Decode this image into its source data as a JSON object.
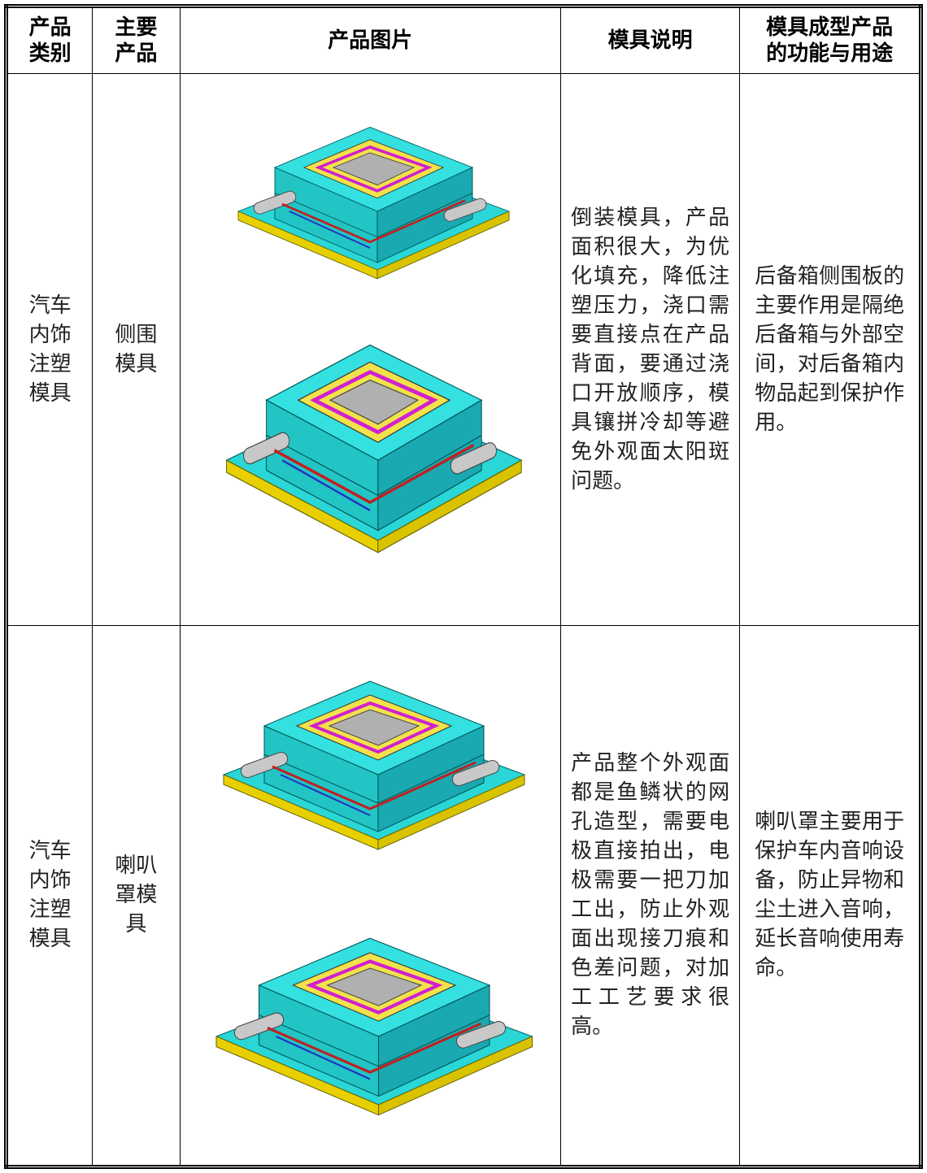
{
  "header": [
    "产品类别",
    "主要产品",
    "产品图片",
    "模具说明",
    "模具成型产品的功能与用途"
  ],
  "rows": [
    {
      "category": "汽车内饰注塑模具",
      "product": "侧围模具",
      "description": "倒装模具，产品面积很大，为优化填充，降低注塑压力，浇口需要直接点在产品背面，要通过浇口开放顺序，模具镶拼冷却等避免外观面太阳斑问题。",
      "function": "后备箱侧围板的主要作用是隔绝后备箱与外部空间，对后备箱内物品起到保护作用。"
    },
    {
      "category": "汽车内饰注塑模具",
      "product": "喇叭罩模具",
      "description": "产品整个外观面都是鱼鳞状的网孔造型，需要电极直接拍出，电极需要一把刀加工出，防止外观面出现接刀痕和色差问题，对加工工艺要求很高。",
      "function": "喇叭罩主要用于保护车内音响设备，防止异物和尘土进入音响，延长音响使用寿命。"
    }
  ]
}
